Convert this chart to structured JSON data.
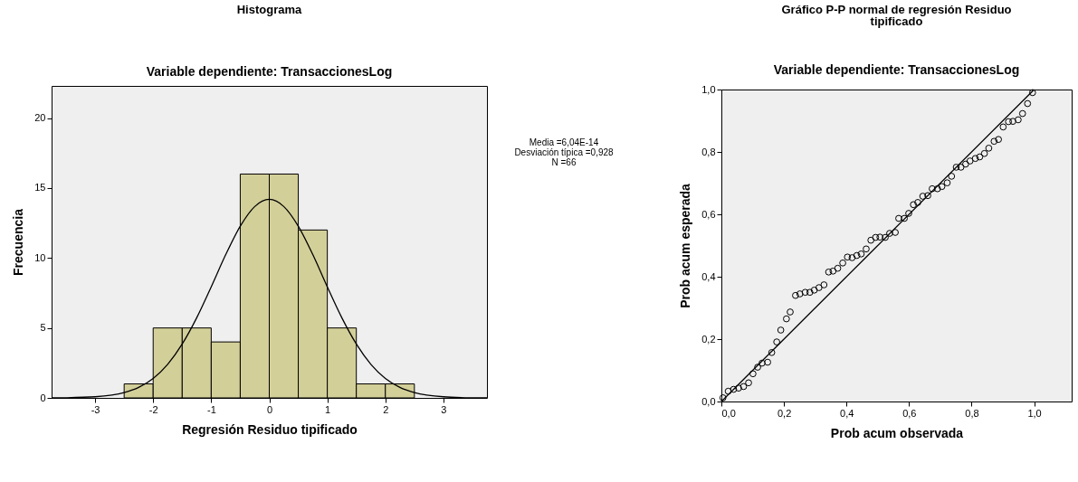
{
  "chart_data": [
    {
      "type": "histogram",
      "title": "Histograma",
      "subtitle": "Variable dependiente: TransaccionesLog",
      "xlabel": "Regresión Residuo tipificado",
      "ylabel": "Frecuencia",
      "bins": [
        -2.5,
        -2,
        -1.5,
        -1,
        -0.5,
        0,
        0.5,
        1,
        1.5,
        2,
        2.5
      ],
      "values": [
        1,
        5,
        5,
        4,
        16,
        16,
        12,
        5,
        1,
        1
      ],
      "color": "#d3cf99",
      "xlim": [
        -3.75,
        3.75
      ],
      "xticks": [
        -3,
        -2,
        -1,
        0,
        1,
        2,
        3
      ],
      "ylim": [
        0,
        22.3
      ],
      "yticks": [
        0,
        5,
        10,
        15,
        20
      ],
      "grid": false,
      "annotations": [
        "Media =6,04E-14",
        "Desviación típica =0,928",
        "N =66"
      ],
      "series": [
        {
          "type": "line",
          "color": "#000000",
          "x": [
            -3.75,
            -3.5,
            -3,
            -2.5,
            -2.25,
            -2,
            -1.75,
            -1.5,
            -1.25,
            -1,
            -0.75,
            -0.5,
            -0.25,
            0,
            0.25,
            0.5,
            0.75,
            1,
            1.25,
            1.5,
            1.75,
            2,
            2.25,
            2.5,
            3,
            3.5,
            3.75
          ],
          "values": [
            0,
            0.01,
            0.08,
            0.38,
            0.75,
            1.39,
            2.4,
            3.85,
            5.73,
            7.94,
            10.24,
            12.27,
            13.68,
            14.19,
            13.68,
            12.27,
            10.24,
            7.94,
            5.73,
            3.85,
            2.4,
            1.39,
            0.75,
            0.38,
            0.08,
            0.01,
            0
          ]
        }
      ]
    },
    {
      "type": "scatter",
      "title": "Gráfico P-P normal de regresión Residuo tipificado",
      "subtitle": "Variable dependiente: TransaccionesLog",
      "xlabel": "Prob acum observada",
      "ylabel": "Prob acum esperada",
      "xlim": [
        0,
        1.12
      ],
      "xticks": [
        {
          "value": 0,
          "label": "0,0"
        },
        {
          "value": 0.2,
          "label": "0,2"
        },
        {
          "value": 0.4,
          "label": "0,4"
        },
        {
          "value": 0.6,
          "label": "0,6"
        },
        {
          "value": 0.8,
          "label": "0,8"
        },
        {
          "value": 1,
          "label": "1,0"
        }
      ],
      "ylim": [
        0,
        1
      ],
      "yticks": [
        {
          "value": 0,
          "label": "0,0"
        },
        {
          "value": 0.2,
          "label": "0,2"
        },
        {
          "value": 0.4,
          "label": "0,4"
        },
        {
          "value": 0.6,
          "label": "0,6"
        },
        {
          "value": 0.8,
          "label": "0,8"
        },
        {
          "value": 1,
          "label": "1,0"
        }
      ],
      "grid": false,
      "series": [
        {
          "marker": "circle",
          "color": "#000000",
          "x": [
            0.005,
            0.022,
            0.039,
            0.055,
            0.071,
            0.087,
            0.101,
            0.116,
            0.13,
            0.148,
            0.161,
            0.177,
            0.19,
            0.208,
            0.22,
            0.237,
            0.251,
            0.268,
            0.283,
            0.297,
            0.312,
            0.328,
            0.343,
            0.357,
            0.372,
            0.388,
            0.403,
            0.418,
            0.433,
            0.447,
            0.463,
            0.478,
            0.493,
            0.507,
            0.524,
            0.538,
            0.556,
            0.567,
            0.585,
            0.599,
            0.614,
            0.628,
            0.644,
            0.66,
            0.674,
            0.691,
            0.705,
            0.722,
            0.736,
            0.751,
            0.766,
            0.781,
            0.795,
            0.812,
            0.826,
            0.841,
            0.855,
            0.872,
            0.886,
            0.901,
            0.918,
            0.932,
            0.949,
            0.963,
            0.979,
            0.995
          ],
          "values": [
            0.012,
            0.033,
            0.039,
            0.043,
            0.048,
            0.06,
            0.089,
            0.11,
            0.123,
            0.126,
            0.157,
            0.191,
            0.229,
            0.265,
            0.287,
            0.34,
            0.345,
            0.35,
            0.35,
            0.357,
            0.365,
            0.374,
            0.415,
            0.418,
            0.427,
            0.444,
            0.463,
            0.461,
            0.468,
            0.473,
            0.489,
            0.517,
            0.526,
            0.527,
            0.526,
            0.539,
            0.542,
            0.587,
            0.587,
            0.603,
            0.631,
            0.638,
            0.658,
            0.66,
            0.682,
            0.682,
            0.689,
            0.701,
            0.722,
            0.751,
            0.751,
            0.761,
            0.771,
            0.779,
            0.784,
            0.795,
            0.812,
            0.834,
            0.84,
            0.88,
            0.897,
            0.898,
            0.903,
            0.923,
            0.955,
            0.99
          ]
        },
        {
          "type": "line",
          "color": "#000000",
          "x": [
            0,
            1
          ],
          "values": [
            0,
            1
          ]
        }
      ]
    }
  ]
}
